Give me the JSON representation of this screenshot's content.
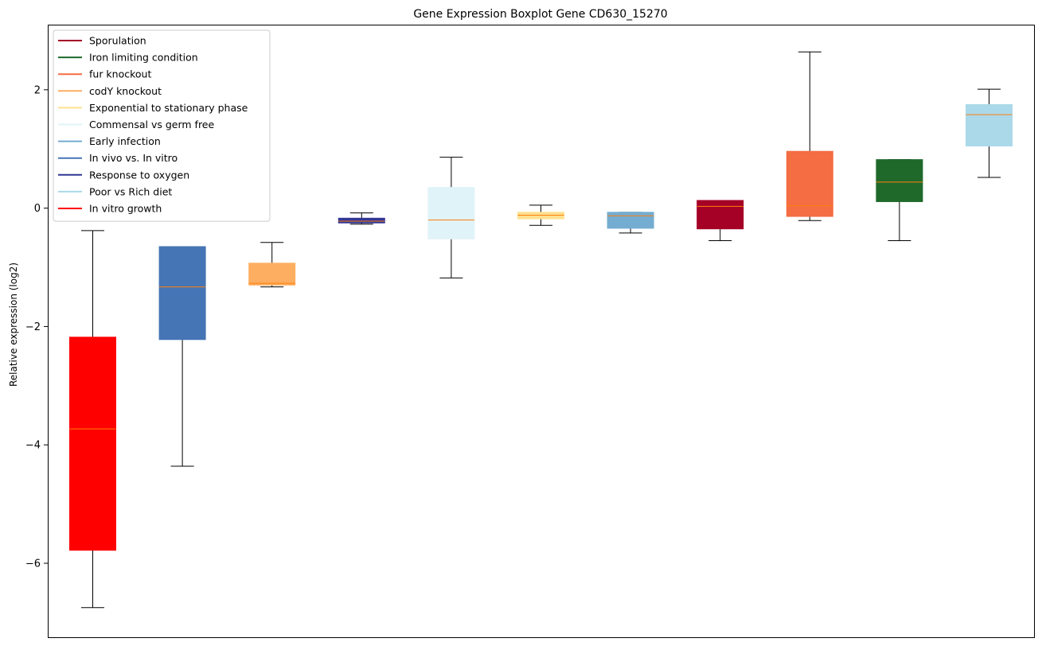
{
  "chart_data": {
    "type": "box",
    "title": "Gene Expression Boxplot Gene CD630_15270",
    "xlabel": "",
    "ylabel": "Relative expression (log2)",
    "ylim": [
      -7.25,
      3.1
    ],
    "yticks": [
      -6,
      -4,
      -2,
      0,
      2
    ],
    "ytick_labels": [
      "−6",
      "−4",
      "−2",
      "0",
      "2"
    ],
    "grid": false,
    "legend_position": "top-left",
    "median_color": "#ff7f0e",
    "legend": [
      {
        "label": "Sporulation",
        "color": "#a50026"
      },
      {
        "label": "Iron limiting condition",
        "color": "#1f6a2a"
      },
      {
        "label": "fur knockout",
        "color": "#f46d43"
      },
      {
        "label": "codY knockout",
        "color": "#fdae61"
      },
      {
        "label": "Exponential to stationary phase",
        "color": "#fee090"
      },
      {
        "label": "Commensal vs germ free",
        "color": "#e0f3f8"
      },
      {
        "label": "Early infection",
        "color": "#74add1"
      },
      {
        "label": "In vivo vs. In vitro",
        "color": "#4575b4"
      },
      {
        "label": "Response to oxygen",
        "color": "#313695"
      },
      {
        "label": "Poor vs Rich diet",
        "color": "#abd9e9"
      },
      {
        "label": "In vitro growth",
        "color": "#ff0000"
      }
    ],
    "boxes": [
      {
        "group": "In vitro growth",
        "color": "#ff0000",
        "whislo": -6.75,
        "q1": -5.78,
        "med": -3.73,
        "q3": -2.18,
        "whishi": -0.38
      },
      {
        "group": "In vivo vs. In vitro",
        "color": "#4575b4",
        "whislo": -4.36,
        "q1": -2.22,
        "med": -1.33,
        "q3": -0.65,
        "whishi": -0.65
      },
      {
        "group": "codY knockout",
        "color": "#fdae61",
        "whislo": -1.33,
        "q1": -1.3,
        "med": -1.27,
        "q3": -0.93,
        "whishi": -0.58
      },
      {
        "group": "Response to oxygen",
        "color": "#313695",
        "whislo": -0.27,
        "q1": -0.25,
        "med": -0.22,
        "q3": -0.17,
        "whishi": -0.08
      },
      {
        "group": "Commensal vs germ free",
        "color": "#e0f3f8",
        "whislo": -1.18,
        "q1": -0.52,
        "med": -0.2,
        "q3": 0.35,
        "whishi": 0.86
      },
      {
        "group": "Exponential to stationary phase",
        "color": "#fee090",
        "whislo": -0.29,
        "q1": -0.18,
        "med": -0.12,
        "q3": -0.07,
        "whishi": 0.05
      },
      {
        "group": "Early infection",
        "color": "#74add1",
        "whislo": -0.42,
        "q1": -0.34,
        "med": -0.13,
        "q3": -0.07,
        "whishi": -0.07
      },
      {
        "group": "Sporulation",
        "color": "#a50026",
        "whislo": -0.55,
        "q1": -0.35,
        "med": 0.03,
        "q3": 0.13,
        "whishi": 0.13
      },
      {
        "group": "fur knockout",
        "color": "#f46d43",
        "whislo": -0.21,
        "q1": -0.14,
        "med": 0.04,
        "q3": 0.96,
        "whishi": 2.64
      },
      {
        "group": "Iron limiting condition",
        "color": "#1f6a2a",
        "whislo": -0.55,
        "q1": 0.11,
        "med": 0.44,
        "q3": 0.82,
        "whishi": 0.82
      },
      {
        "group": "Poor vs Rich diet",
        "color": "#abd9e9",
        "whislo": 0.52,
        "q1": 1.05,
        "med": 1.58,
        "q3": 1.75,
        "whishi": 2.01
      }
    ]
  }
}
